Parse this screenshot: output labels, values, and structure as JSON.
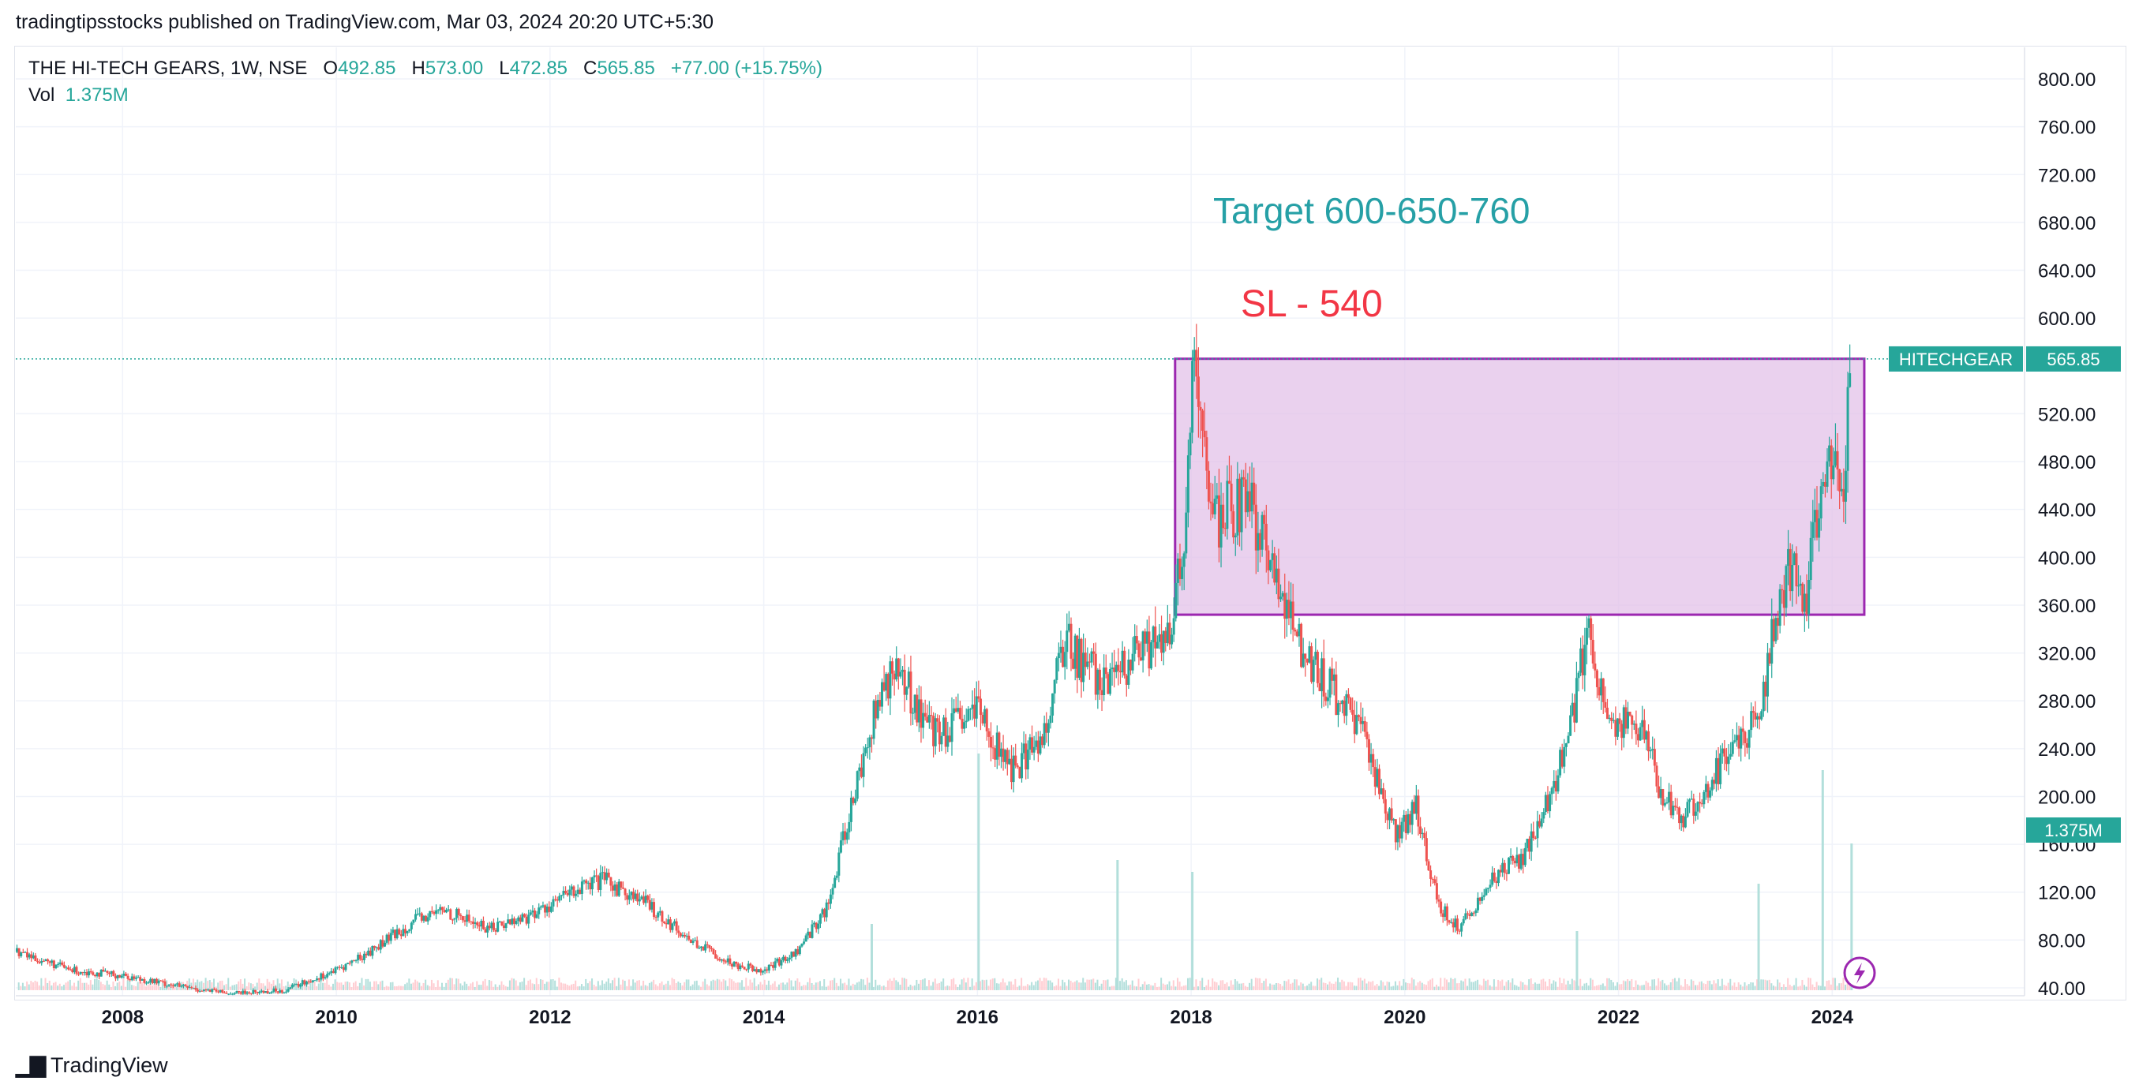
{
  "header": {
    "publish_line": "tradingtipsstocks published on TradingView.com, Mar 03, 2024 20:20 UTC+5:30"
  },
  "legend": {
    "symbol_line": "THE HI-TECH GEARS, 1W, NSE",
    "o_label": "O",
    "o_value": "492.85",
    "h_label": "H",
    "h_value": "573.00",
    "l_label": "L",
    "l_value": "472.85",
    "c_label": "C",
    "c_value": "565.85",
    "change": "+77.00 (+15.75%)",
    "vol_label": "Vol",
    "vol_value": "1.375M"
  },
  "footer": {
    "brand": "TradingView"
  },
  "colors": {
    "up": "#26a69a",
    "down": "#ef5350",
    "box_stroke": "#9c27b0",
    "box_fill": "#e1bee7",
    "target_text": "#26a0a6",
    "sl_text": "#f23645"
  },
  "chart_data": {
    "type": "candlestick",
    "x_axis": {
      "ticks": [
        "2008",
        "2010",
        "2012",
        "2014",
        "2016",
        "2018",
        "2020",
        "2022",
        "2024"
      ],
      "range": [
        2007.0,
        2025.8
      ]
    },
    "y_axis": {
      "ticks": [
        "800.00",
        "760.00",
        "720.00",
        "680.00",
        "640.00",
        "600.00",
        "520.00",
        "480.00",
        "440.00",
        "400.00",
        "360.00",
        "320.00",
        "280.00",
        "240.00",
        "200.00",
        "160.00",
        "120.00",
        "80.00",
        "40.00"
      ],
      "range": [
        40,
        800
      ]
    },
    "price_path": [
      [
        2007.0,
        70
      ],
      [
        2007.5,
        55
      ],
      [
        2008.0,
        50
      ],
      [
        2008.3,
        45
      ],
      [
        2008.6,
        40
      ],
      [
        2009.0,
        35
      ],
      [
        2009.5,
        38
      ],
      [
        2010.0,
        55
      ],
      [
        2010.3,
        70
      ],
      [
        2010.7,
        95
      ],
      [
        2011.0,
        105
      ],
      [
        2011.4,
        90
      ],
      [
        2011.8,
        100
      ],
      [
        2012.2,
        120
      ],
      [
        2012.5,
        130
      ],
      [
        2012.9,
        110
      ],
      [
        2013.3,
        80
      ],
      [
        2013.7,
        60
      ],
      [
        2014.0,
        55
      ],
      [
        2014.3,
        70
      ],
      [
        2014.6,
        110
      ],
      [
        2014.8,
        190
      ],
      [
        2015.0,
        260
      ],
      [
        2015.2,
        310
      ],
      [
        2015.6,
        250
      ],
      [
        2016.0,
        270
      ],
      [
        2016.3,
        220
      ],
      [
        2016.6,
        250
      ],
      [
        2016.8,
        330
      ],
      [
        2017.2,
        290
      ],
      [
        2017.5,
        320
      ],
      [
        2017.8,
        330
      ],
      [
        2017.95,
        440
      ],
      [
        2018.0,
        560
      ],
      [
        2018.2,
        430
      ],
      [
        2018.5,
        450
      ],
      [
        2018.8,
        380
      ],
      [
        2019.0,
        330
      ],
      [
        2019.3,
        290
      ],
      [
        2019.6,
        250
      ],
      [
        2019.9,
        170
      ],
      [
        2020.1,
        190
      ],
      [
        2020.3,
        110
      ],
      [
        2020.5,
        90
      ],
      [
        2020.8,
        130
      ],
      [
        2021.1,
        150
      ],
      [
        2021.3,
        190
      ],
      [
        2021.5,
        240
      ],
      [
        2021.7,
        340
      ],
      [
        2021.9,
        260
      ],
      [
        2022.2,
        260
      ],
      [
        2022.4,
        200
      ],
      [
        2022.6,
        180
      ],
      [
        2022.9,
        220
      ],
      [
        2023.1,
        250
      ],
      [
        2023.3,
        260
      ],
      [
        2023.45,
        350
      ],
      [
        2023.6,
        390
      ],
      [
        2023.75,
        370
      ],
      [
        2023.9,
        470
      ],
      [
        2024.0,
        480
      ],
      [
        2024.1,
        460
      ],
      [
        2024.17,
        565.85
      ]
    ],
    "volume_spikes": [
      [
        2015.0,
        0.28
      ],
      [
        2016.0,
        1.0
      ],
      [
        2017.3,
        0.55
      ],
      [
        2018.0,
        0.5
      ],
      [
        2021.6,
        0.25
      ],
      [
        2023.3,
        0.45
      ],
      [
        2023.9,
        0.93
      ],
      [
        2024.17,
        0.62
      ]
    ],
    "annotations": {
      "target_text": "Target 600-650-760",
      "sl_text": "SL - 540",
      "zone": {
        "x_start": 2017.85,
        "x_end": 2024.3,
        "price_low": 352,
        "price_high": 566
      },
      "last_price_line": 565.85
    },
    "price_label": {
      "symbol": "HITECHGEAR",
      "value": "565.85"
    },
    "volume_label": "1.375M"
  }
}
